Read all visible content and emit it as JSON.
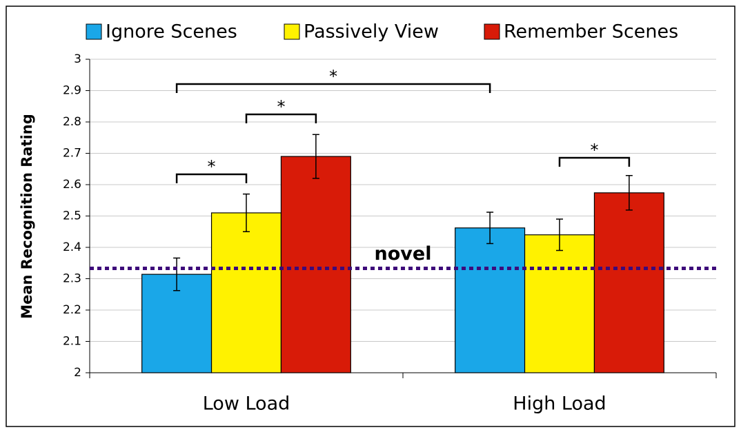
{
  "chart_data": {
    "type": "bar",
    "y_label": "Mean Recognition Rating",
    "categories": [
      "Low Load",
      "High Load"
    ],
    "series": [
      {
        "name": "Ignore Scenes",
        "color": "#1aa7e8",
        "values": [
          2.314,
          2.462
        ],
        "errors": [
          0.052,
          0.05
        ]
      },
      {
        "name": "Passively View",
        "color": "#fff200",
        "values": [
          2.51,
          2.44
        ],
        "errors": [
          0.06,
          0.05
        ]
      },
      {
        "name": "Remember Scenes",
        "color": "#d81b08",
        "values": [
          2.69,
          2.574
        ],
        "errors": [
          0.07,
          0.055
        ]
      }
    ],
    "ylim": [
      2,
      3
    ],
    "yticks": [
      2,
      2.1,
      2.2,
      2.3,
      2.4,
      2.5,
      2.6,
      2.7,
      2.8,
      2.9,
      3
    ],
    "grid": true,
    "legend": "top",
    "reference_line": {
      "value": 2.333,
      "label": "novel",
      "color": "#3d0a7a"
    },
    "annotations": [
      "*",
      "*",
      "*",
      "*"
    ]
  }
}
